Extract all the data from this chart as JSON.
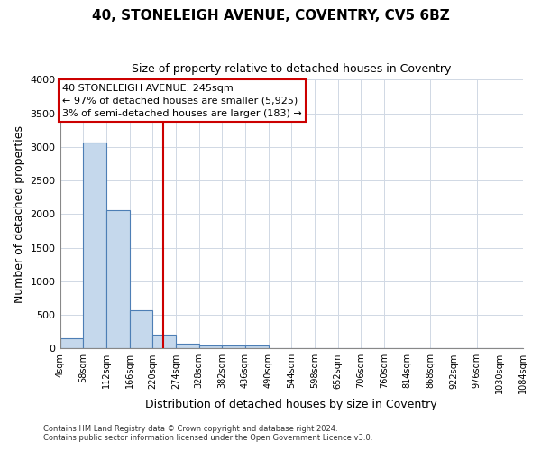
{
  "title": "40, STONELEIGH AVENUE, COVENTRY, CV5 6BZ",
  "subtitle": "Size of property relative to detached houses in Coventry",
  "xlabel": "Distribution of detached houses by size in Coventry",
  "ylabel": "Number of detached properties",
  "bin_edges": [
    4,
    58,
    112,
    166,
    220,
    274,
    328,
    382,
    436,
    490,
    544,
    598,
    652,
    706,
    760,
    814,
    868,
    922,
    976,
    1030,
    1084
  ],
  "bin_labels": [
    "4sqm",
    "58sqm",
    "112sqm",
    "166sqm",
    "220sqm",
    "274sqm",
    "328sqm",
    "382sqm",
    "436sqm",
    "490sqm",
    "544sqm",
    "598sqm",
    "652sqm",
    "706sqm",
    "760sqm",
    "814sqm",
    "868sqm",
    "922sqm",
    "976sqm",
    "1030sqm",
    "1084sqm"
  ],
  "counts": [
    150,
    3060,
    2060,
    565,
    200,
    75,
    50,
    50,
    50,
    0,
    0,
    0,
    0,
    0,
    0,
    0,
    0,
    0,
    0,
    0
  ],
  "bar_color": "#c5d8ec",
  "bar_edge_color": "#4d7eb5",
  "vline_x": 245,
  "vline_color": "#cc0000",
  "ylim": [
    0,
    4000
  ],
  "yticks": [
    0,
    500,
    1000,
    1500,
    2000,
    2500,
    3000,
    3500,
    4000
  ],
  "annotation_title": "40 STONELEIGH AVENUE: 245sqm",
  "annotation_line1": "← 97% of detached houses are smaller (5,925)",
  "annotation_line2": "3% of semi-detached houses are larger (183) →",
  "annotation_box_color": "#ffffff",
  "annotation_box_edge": "#cc0000",
  "footer1": "Contains HM Land Registry data © Crown copyright and database right 2024.",
  "footer2": "Contains public sector information licensed under the Open Government Licence v3.0.",
  "bg_color": "#ffffff",
  "grid_color": "#d0d8e4"
}
